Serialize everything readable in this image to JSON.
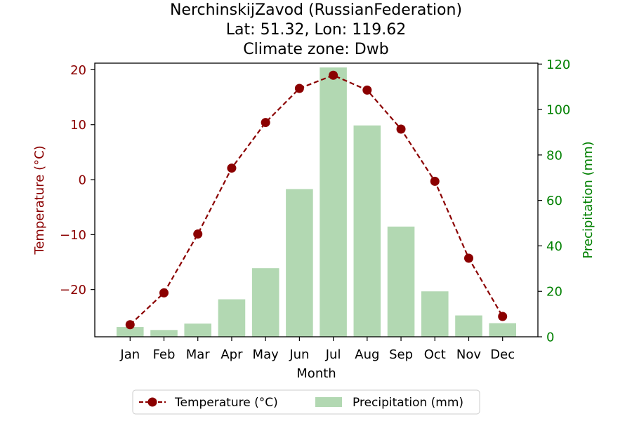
{
  "chart_data": {
    "type": "bar+line",
    "title_lines": [
      "NerchinskijZavod (RussianFederation)",
      "Lat: 51.32, Lon: 119.62",
      "Climate zone: Dwb"
    ],
    "xlabel": "Month",
    "categories": [
      "Jan",
      "Feb",
      "Mar",
      "Apr",
      "May",
      "Jun",
      "Jul",
      "Aug",
      "Sep",
      "Oct",
      "Nov",
      "Dec"
    ],
    "temperature": {
      "name": "Temperature (°C)",
      "axis_label": "Temperature (°C)",
      "values": [
        -26.4,
        -20.6,
        -9.9,
        2.1,
        10.4,
        16.6,
        19.0,
        16.3,
        9.2,
        -0.3,
        -14.3,
        -24.9
      ],
      "ylim": [
        -28.6,
        21.2
      ],
      "ticks": [
        -20,
        -10,
        0,
        10,
        20
      ],
      "color": "#8b0000"
    },
    "precipitation": {
      "name": "Precipitation (mm)",
      "axis_label": "Precipitation (mm)",
      "values": [
        4.3,
        3.0,
        5.8,
        16.5,
        30.2,
        65.0,
        118.5,
        93.0,
        48.5,
        20.0,
        9.4,
        6.0
      ],
      "ylim": [
        0,
        120.4
      ],
      "ticks": [
        0,
        20,
        40,
        60,
        80,
        100,
        120
      ],
      "color": "#b2d8b2",
      "axis_color": "#008000"
    },
    "legend_position": "bottom-center",
    "grid": false
  }
}
